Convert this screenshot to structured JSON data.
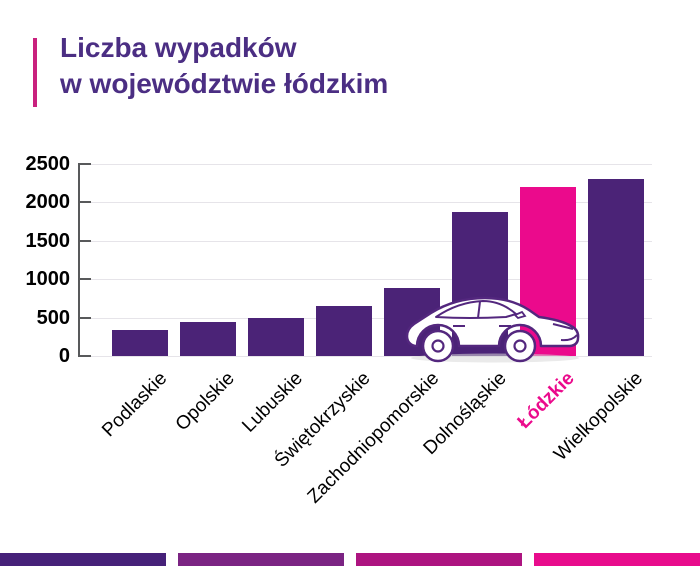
{
  "title": {
    "line1": "Liczba wypadków",
    "line2": "w województwie łódzkim"
  },
  "chart_data": {
    "type": "bar",
    "title": "Liczba wypadków w województwie łódzkim",
    "categories": [
      "Podlaskie",
      "Opolskie",
      "Lubuskie",
      "Świętokrzyskie",
      "Zachodniopomorskie",
      "Dolnośląskie",
      "Łódzkie",
      "Wielkopolskie"
    ],
    "values": [
      335,
      440,
      500,
      650,
      880,
      1870,
      2200,
      2300
    ],
    "highlight_category": "Łódzkie",
    "xlabel": "",
    "ylabel": "",
    "ylim": [
      0,
      2500
    ],
    "yticks": [
      0,
      500,
      1000,
      1500,
      2000,
      2500
    ],
    "grid": true,
    "legend_position": "none",
    "bar_color": "#4B2377",
    "highlight_color": "#EB0A8C",
    "tick_label_color": "#000000",
    "highlight_tick_label_color": "#EB0A8C"
  },
  "decor": {
    "accent_bar_color": "#C9217E",
    "title_color": "#4B2E83",
    "car_icon": "car-side-view",
    "car_outline_color": "#53277E",
    "footer_segment_colors": [
      "#462179",
      "#7B2483",
      "#AD1480",
      "#E80C8C"
    ]
  }
}
